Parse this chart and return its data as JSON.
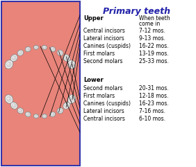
{
  "title": "Primary teeth",
  "title_color": "#2222aa",
  "background_color": "#e8847a",
  "border_color": "#3333aa",
  "upper_label": "Upper",
  "when_label": "When teeth",
  "come_in": "come in",
  "upper_teeth": [
    [
      "Central incisors",
      "7-12 mos."
    ],
    [
      "Lateral incisors",
      "9-13 mos."
    ],
    [
      "Canines (cuspids)",
      "16-22 mos."
    ],
    [
      "First molars",
      "13-19 mos."
    ],
    [
      "Second molars",
      "25-33 mos."
    ]
  ],
  "lower_label": "Lower",
  "lower_teeth": [
    [
      "Second molars",
      "20-31 mos."
    ],
    [
      "First molars",
      "12-18 mos."
    ],
    [
      "Canines (cuspids)",
      "16-23 mos."
    ],
    [
      "Lateral incisors",
      "7-16 mos."
    ],
    [
      "Central incisors",
      "6-10 mos."
    ]
  ],
  "fig_bg": "#ffffff"
}
